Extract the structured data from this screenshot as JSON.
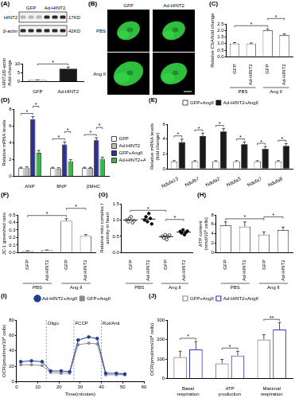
{
  "blot": {
    "panel": "(A)",
    "columns": [
      "GFP",
      "Ad-HINT2"
    ],
    "rows": [
      {
        "label": "HINT2",
        "size": "17KD"
      },
      {
        "label": "β-actin",
        "size": "42KD"
      }
    ]
  },
  "micrographs": {
    "panel": "(B)",
    "columns": [
      "GFP",
      "Ad-HINT2"
    ],
    "rows": [
      "PBS",
      "Ang II"
    ]
  },
  "chart_data": [
    {
      "type": "bar",
      "y_label": [
        "HINT2/β-actin",
        "/fold change"
      ],
      "categories": [
        "GFP",
        "Ad-HINT2"
      ],
      "values": [
        1,
        7.3
      ],
      "errors": [
        0.1,
        0.8
      ],
      "colors": [
        "#ffffff",
        "#1a1a1a"
      ],
      "ylim": [
        0,
        10
      ],
      "yticks": [
        0,
        5,
        10
      ],
      "grid": false,
      "brackets": [
        {
          "from": 0,
          "to": 1,
          "label": "*"
        }
      ]
    },
    {
      "panel": "(C)",
      "type": "bar",
      "y_label": "Relative CSA/fold change",
      "categories": [
        "GFP",
        "Ad-HINT2",
        "GFP",
        "Ad-HINT2"
      ],
      "groups": [
        {
          "label": "PBS",
          "size": 2
        },
        {
          "label": "Ang II",
          "size": 2
        }
      ],
      "values": [
        1.0,
        0.98,
        2.02,
        1.65
      ],
      "errors": [
        0.08,
        0.07,
        0.1,
        0.09
      ],
      "color": "#ffffff",
      "ylim": [
        0,
        2.5
      ],
      "yticks": [
        {
          "value": 0,
          "label": "0.0"
        },
        {
          "value": 0.5,
          "label": "0.5"
        },
        {
          "value": 1,
          "label": "1.0"
        },
        {
          "value": 1.5,
          "label": "1.5"
        },
        {
          "value": 2,
          "label": "2.0"
        },
        {
          "value": 2.5,
          "label": "2.5"
        }
      ],
      "grid": false,
      "brackets": [
        {
          "from": 0,
          "to": 2,
          "label": "*"
        },
        {
          "from": 2,
          "to": 3,
          "label": "*"
        }
      ]
    },
    {
      "panel": "(D)",
      "type": "bar",
      "y_label": "Relative mRNA levels",
      "categories": [
        "ANP",
        "BNP",
        "βMHC"
      ],
      "series": [
        {
          "name": "GFP",
          "color": "#ffffff",
          "values": [
            1,
            1,
            1
          ],
          "errors": [
            0.1,
            0.1,
            0.1
          ]
        },
        {
          "name": "Ad-HINT2",
          "color": "#bdbdbd",
          "values": [
            1.05,
            0.95,
            1.0
          ],
          "errors": [
            0.1,
            0.1,
            0.1
          ]
        },
        {
          "name": "GFP+AngII",
          "color": "#2e3192",
          "values": [
            6.8,
            3.8,
            4.3
          ],
          "errors": [
            0.3,
            0.3,
            0.3
          ]
        },
        {
          "name": "Ad-HINT2+AngII",
          "color": "#3cb44b",
          "values": [
            2.8,
            1.8,
            2.1
          ],
          "errors": [
            0.3,
            0.2,
            0.2
          ]
        }
      ],
      "ylim": [
        0,
        8
      ],
      "yticks": [
        0,
        2,
        4,
        6,
        8
      ],
      "grid": false,
      "legend": "right",
      "brackets": [
        {
          "category": 0,
          "from": 0,
          "to": 2,
          "label": "*"
        },
        {
          "category": 0,
          "from": 2,
          "to": 3,
          "label": "*"
        },
        {
          "category": 1,
          "from": 0,
          "to": 2,
          "label": "*"
        },
        {
          "category": 1,
          "from": 2,
          "to": 3,
          "label": "*"
        },
        {
          "category": 2,
          "from": 0,
          "to": 2,
          "label": "*"
        },
        {
          "category": 2,
          "from": 2,
          "to": 3,
          "label": "*"
        }
      ]
    },
    {
      "panel": "(E)",
      "type": "bar",
      "y_label": [
        "Relative mRNA levels",
        "(fold change)"
      ],
      "categories": [
        "Ndufa13",
        "Ndufb7",
        "Ndufa2",
        "Ndufa3",
        "Ndufa7",
        "Ndufa8"
      ],
      "series": [
        {
          "name": "GFP+AngII",
          "color": "#ffffff",
          "values": [
            1,
            1,
            1,
            1,
            1,
            1
          ],
          "errors": [
            0.1,
            0.1,
            0.1,
            0.1,
            0.1,
            0.1
          ]
        },
        {
          "name": "Ad-HINT2+AngII",
          "color": "#1a1a1a",
          "values": [
            3.6,
            4.4,
            5.0,
            3.3,
            2.7,
            3.1
          ],
          "errors": [
            0.4,
            0.4,
            0.4,
            0.3,
            0.3,
            0.3
          ]
        }
      ],
      "ylim": [
        0,
        6
      ],
      "yticks": [
        0,
        2,
        4,
        6
      ],
      "grid": false,
      "legend": "top",
      "brackets": [
        {
          "category": 0,
          "from": 0,
          "to": 1,
          "label": "*"
        },
        {
          "category": 1,
          "from": 0,
          "to": 1,
          "label": "*"
        },
        {
          "category": 2,
          "from": 0,
          "to": 1,
          "label": "*"
        },
        {
          "category": 3,
          "from": 0,
          "to": 1,
          "label": "*"
        },
        {
          "category": 4,
          "from": 0,
          "to": 1,
          "label": "*"
        },
        {
          "category": 5,
          "from": 0,
          "to": 1,
          "label": "*"
        }
      ]
    },
    {
      "panel": "(F)",
      "type": "bar",
      "y_label": "JC-1 green/red ratio",
      "categories": [
        "GFP",
        "Ad-HINT2",
        "GFP",
        "Ad-HINT2"
      ],
      "groups": [
        {
          "label": "PBS",
          "size": 2
        },
        {
          "label": "Ang II",
          "size": 2
        }
      ],
      "values": [
        0.02,
        0.03,
        0.42,
        0.22
      ],
      "errors": [
        0.005,
        0.005,
        0.03,
        0.02
      ],
      "color": "#ffffff",
      "ylim": [
        0,
        0.5
      ],
      "yticks": [
        {
          "value": 0,
          "label": "0.0"
        },
        0.1,
        0.2,
        0.3,
        0.4,
        0.5
      ],
      "grid": false,
      "brackets": [
        {
          "from": 0,
          "to": 2,
          "label": "*"
        },
        {
          "from": 2,
          "to": 3,
          "label": "*"
        }
      ]
    },
    {
      "panel": "(G)",
      "type": "scatter",
      "y_label": [
        "Relative mito complex I",
        "activity in heart"
      ],
      "categories": [
        "GFP",
        "Ad-HINT2",
        "GFP",
        "Ad-HINT2"
      ],
      "groups": [
        {
          "label": "PBS",
          "size": 2
        },
        {
          "label": "Ang II",
          "size": 2
        }
      ],
      "points": [
        [
          1.0,
          0.95,
          1.05,
          1.1,
          0.92,
          0.98
        ],
        [
          1.0,
          1.1,
          0.95,
          1.2,
          1.05,
          0.88
        ],
        [
          0.5,
          0.45,
          0.55,
          0.4,
          0.5,
          0.54
        ],
        [
          0.65,
          0.6,
          0.7,
          0.55,
          0.62,
          0.66
        ]
      ],
      "means": [
        1.0,
        1.03,
        0.49,
        0.63
      ],
      "color": "#000000",
      "marker": "circle",
      "ylim": [
        0,
        1.5
      ],
      "yticks": [
        {
          "value": 0,
          "label": "0.0"
        },
        0.5,
        {
          "value": 1,
          "label": "1.0"
        },
        1.5
      ],
      "grid": false,
      "brackets": [
        {
          "from": 0,
          "to": 2,
          "label": "*"
        },
        {
          "from": 2,
          "to": 3,
          "label": "*"
        }
      ]
    },
    {
      "panel": "(H)",
      "type": "bar",
      "y_label": [
        "ATP content",
        "(nmol/10⁶ cells)"
      ],
      "categories": [
        "GFP",
        "Ad-HINT2",
        "GFP",
        "Ad-HINT2"
      ],
      "groups": [
        {
          "label": "PBS",
          "size": 2
        },
        {
          "label": "Ang II",
          "size": 2
        }
      ],
      "values": [
        5.8,
        5.5,
        3.8,
        4.8
      ],
      "errors": [
        0.7,
        1.0,
        0.6,
        0.6
      ],
      "color": "#ffffff",
      "ylim": [
        0,
        8
      ],
      "yticks": [
        0,
        2,
        4,
        6,
        8
      ],
      "grid": false,
      "brackets": [
        {
          "from": 0,
          "to": 2,
          "label": "*"
        },
        {
          "from": 2,
          "to": 3,
          "label": "*"
        }
      ]
    },
    {
      "panel": "(I)",
      "type": "line",
      "x_label": "Time(minutes)",
      "y_label": "OCR(pmol/min/10⁴ cells)",
      "x": [
        2,
        7,
        12,
        16,
        21,
        25,
        29,
        34,
        38,
        42,
        47,
        51
      ],
      "series": [
        {
          "name": "Ad-HINT2+AngII",
          "color": "#1f3c99",
          "marker": "circle",
          "values": [
            26,
            27,
            26,
            14,
            14,
            13,
            54,
            58,
            56,
            11,
            11,
            10
          ]
        },
        {
          "name": "GFP+AngII",
          "color": "#8c8c8c",
          "marker": "square",
          "values": [
            22,
            22,
            21,
            12,
            11,
            11,
            48,
            50,
            49,
            9,
            9,
            9
          ]
        }
      ],
      "xlim": [
        0,
        60
      ],
      "xticks": [
        0,
        10,
        20,
        30,
        40,
        50,
        60
      ],
      "ylim": [
        0,
        80
      ],
      "yticks": [
        0,
        20,
        40,
        60,
        80
      ],
      "grid": false,
      "legend": "top",
      "annotations": [
        {
          "x": 14,
          "label": "Oligo"
        },
        {
          "x": 27,
          "label": "FCCP"
        },
        {
          "x": 40,
          "label": "Rot/Anit"
        }
      ]
    },
    {
      "panel": "(J)",
      "type": "bar",
      "y_label": "OCR(pmol/min/10⁴ cells)",
      "categories": [
        "Basal respiration",
        "ATP production",
        "Maximal respiration"
      ],
      "series": [
        {
          "name": "GFP+AngII",
          "color": "#8c8c8c",
          "values": [
            110,
            78,
            200
          ],
          "errors": [
            30,
            20,
            25
          ]
        },
        {
          "name": "Ad-HINT2+AngII",
          "color": "#2f3fbf",
          "values": [
            150,
            118,
            252
          ],
          "errors": [
            40,
            22,
            35
          ]
        }
      ],
      "ylim": [
        0,
        300
      ],
      "yticks": [
        0,
        100,
        200,
        300
      ],
      "grid": false,
      "legend": "top",
      "brackets": [
        {
          "category": 0,
          "from": 0,
          "to": 1,
          "label": "*"
        },
        {
          "category": 1,
          "from": 0,
          "to": 1,
          "label": "*"
        },
        {
          "category": 2,
          "from": 0,
          "to": 1,
          "label": "**"
        }
      ]
    }
  ]
}
